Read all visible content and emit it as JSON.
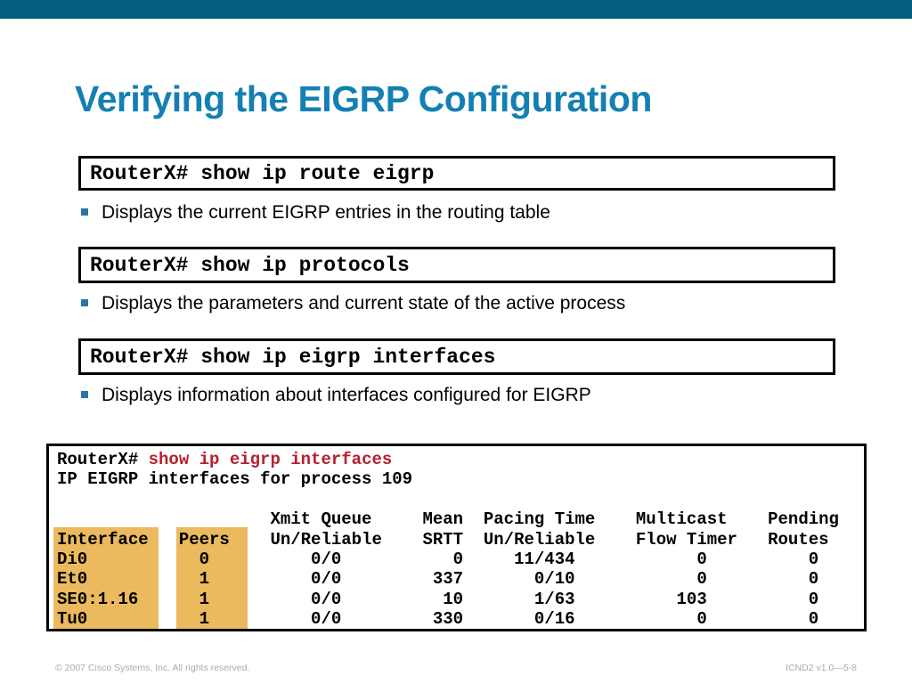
{
  "title": "Verifying the EIGRP Configuration",
  "commands": [
    {
      "label": "RouterX# show ip route eigrp",
      "description": "Displays the current EIGRP entries in the routing table"
    },
    {
      "label": "RouterX# show ip protocols",
      "description": "Displays the parameters and current state of the active process"
    },
    {
      "label": "RouterX# show ip eigrp interfaces",
      "description": "Displays information about interfaces configured for EIGRP"
    }
  ],
  "console": {
    "prompt": "RouterX# ",
    "command": "show ip eigrp interfaces",
    "process_line": "IP EIGRP interfaces for process 109",
    "blank_line": "",
    "header_line_1": "                     Xmit Queue     Mean  Pacing Time    Multicast    Pending",
    "header_line_2": "Interface   Peers    Un/Reliable    SRTT  Un/Reliable    Flow Timer   Routes",
    "row_lines": [
      "Di0           0          0/0           0     11/434            0          0",
      "Et0           1          0/0         337       0/10            0          0",
      "SE0:1.16      1          0/0          10       1/63          103          0",
      "Tu0           1          0/0         330       0/16            0          0"
    ],
    "table": {
      "columns": [
        "Interface",
        "Peers",
        "Xmit Queue Un/Reliable",
        "Mean SRTT",
        "Pacing Time Un/Reliable",
        "Multicast Flow Timer",
        "Pending Routes"
      ],
      "rows": [
        [
          "Di0",
          "0",
          "0/0",
          "0",
          "11/434",
          "0",
          "0"
        ],
        [
          "Et0",
          "1",
          "0/0",
          "337",
          "0/10",
          "0",
          "0"
        ],
        [
          "SE0:1.16",
          "1",
          "0/0",
          "10",
          "1/63",
          "103",
          "0"
        ],
        [
          "Tu0",
          "1",
          "0/0",
          "330",
          "0/16",
          "0",
          "0"
        ]
      ],
      "highlighted_columns": [
        "Interface",
        "Peers"
      ]
    }
  },
  "footer": {
    "left": "© 2007 Cisco Systems, Inc. All rights reserved.",
    "right": "ICND2 v1.0—5-8"
  },
  "colors": {
    "topbar": "#045C7E",
    "title": "#1480B2",
    "bullet": "#2776A6",
    "command_red": "#B4212E",
    "highlight": "#EBBA5F",
    "footer_gray": "#ABABAB"
  }
}
